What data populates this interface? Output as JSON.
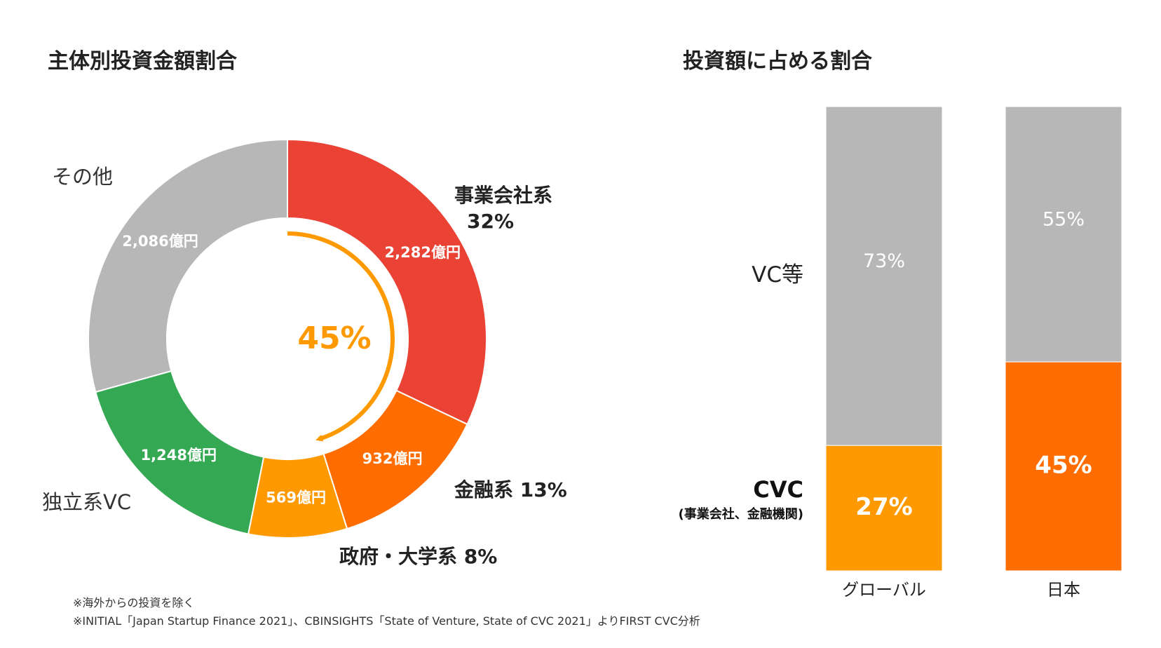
{
  "titles": {
    "left": "主体別投資金額割合",
    "right": "投資額に占める割合"
  },
  "notes": {
    "line1": "※海外からの投資を除く",
    "line2": "※INITIAL「Japan Startup Finance 2021」、CBINSIGHTS「State of Venture, State of CVC 2021」よりFIRST CVC分析"
  },
  "chart_data": [
    {
      "type": "pie",
      "variant": "donut",
      "title": "主体別投資金額割合",
      "unit": "億円",
      "slices": [
        {
          "key": "corporate",
          "label": "事業会社系",
          "pct_label": "32%",
          "value": 2282,
          "value_label": "2,282億円",
          "color": "#EA4335"
        },
        {
          "key": "financial",
          "label": "金融系 13%",
          "pct_label": "",
          "value": 932,
          "value_label": "932億円",
          "color": "#FF6D01"
        },
        {
          "key": "government",
          "label": "政府・大学系 8%",
          "pct_label": "",
          "value": 569,
          "value_label": "569億円",
          "color": "#FF9900"
        },
        {
          "key": "independent",
          "label": "独立系VC",
          "pct_label": "",
          "value": 1248,
          "value_label": "1,248億円",
          "color": "#34A853"
        },
        {
          "key": "other",
          "label": "その他",
          "pct_label": "",
          "value": 2086,
          "value_label": "2,086億円",
          "color": "#B7B7B7"
        }
      ],
      "center_annotation": {
        "text": "45%",
        "color": "#FF9900",
        "arrow_color": "#FF9900"
      }
    },
    {
      "type": "bar",
      "stacked": true,
      "percent": true,
      "title": "投資額に占める割合",
      "categories": [
        "グローバル",
        "日本"
      ],
      "ylim": [
        0,
        100
      ],
      "series": [
        {
          "name": "CVC",
          "sublabel": "(事業会社、金融機関)",
          "values": [
            27,
            45
          ],
          "value_labels": [
            "27%",
            "45%"
          ],
          "colors": [
            "#FF9900",
            "#FF6D01"
          ]
        },
        {
          "name": "VC等",
          "values": [
            73,
            55
          ],
          "value_labels": [
            "73%",
            "55%"
          ],
          "colors": [
            "#B7B7B7",
            "#B7B7B7"
          ]
        }
      ]
    }
  ]
}
